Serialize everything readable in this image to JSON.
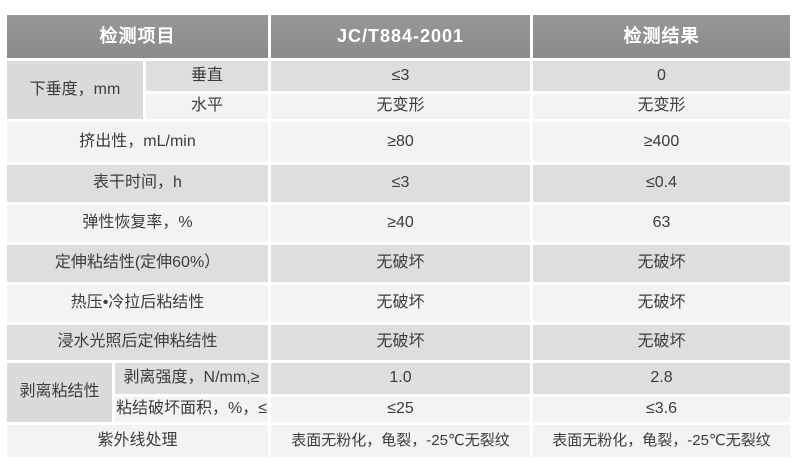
{
  "colors": {
    "header_bg": "#8f8f8f",
    "header_text": "#ffffff",
    "row_gray": "#e0dedd",
    "row_light": "#f4f3f1",
    "body_text": "#3c3c3c",
    "gap": "#ffffff"
  },
  "table": {
    "headers": [
      "检测项目",
      "JC/T884-2001",
      "检测结果"
    ],
    "sag_group": {
      "group_label": "下垂度，mm",
      "vertical": {
        "label": "垂直",
        "standard": "≤3",
        "result": "0"
      },
      "horizontal": {
        "label": "水平",
        "standard": "无变形",
        "result": "无变形"
      }
    },
    "rows": [
      {
        "label": "挤出性，mL/min",
        "standard": "≥80",
        "result": "≥400"
      },
      {
        "label": "表干时间，h",
        "standard": "≤3",
        "result": "≤0.4"
      },
      {
        "label": "弹性恢复率，%",
        "standard": "≥40",
        "result": "63"
      },
      {
        "label": "定伸粘结性(定伸60%）",
        "standard": "无破坏",
        "result": "无破坏"
      },
      {
        "label": "热压•冷拉后粘结性",
        "standard": "无破坏",
        "result": "无破坏"
      },
      {
        "label": "浸水光照后定伸粘结性",
        "standard": "无破坏",
        "result": "无破坏"
      }
    ],
    "peel_group": {
      "group_label": "剥离粘结性",
      "strength": {
        "label": "剥离强度，N/mm,≥",
        "standard": "1.0",
        "result": "2.8"
      },
      "area": {
        "label": "粘结破坏面积，%，≤",
        "standard": "≤25",
        "result": "≤3.6"
      }
    },
    "uv_row": {
      "label": "紫外线处理",
      "standard": "表面无粉化，龟裂，-25℃无裂纹",
      "result": "表面无粉化，龟裂，-25℃无裂纹"
    }
  }
}
